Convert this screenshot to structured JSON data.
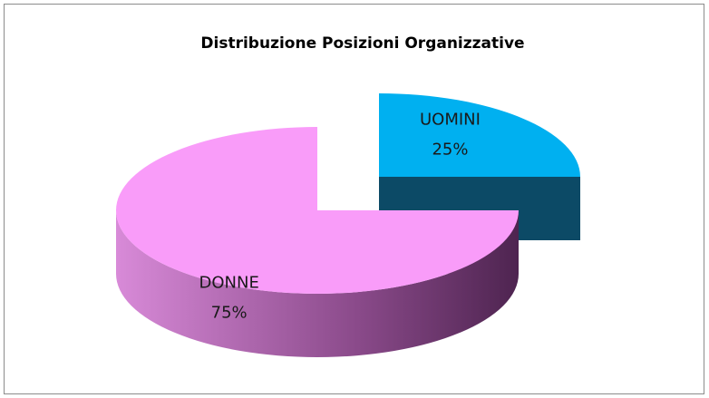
{
  "chart_data": {
    "type": "pie3d",
    "title": "Distribuzione  Posizioni  Organizzative",
    "categories": [
      "UOMINI",
      "DONNE"
    ],
    "values": [
      25,
      75
    ],
    "value_labels": [
      "25%",
      "75%"
    ],
    "colors": [
      "#00b0f0",
      "#f99cf9"
    ]
  }
}
